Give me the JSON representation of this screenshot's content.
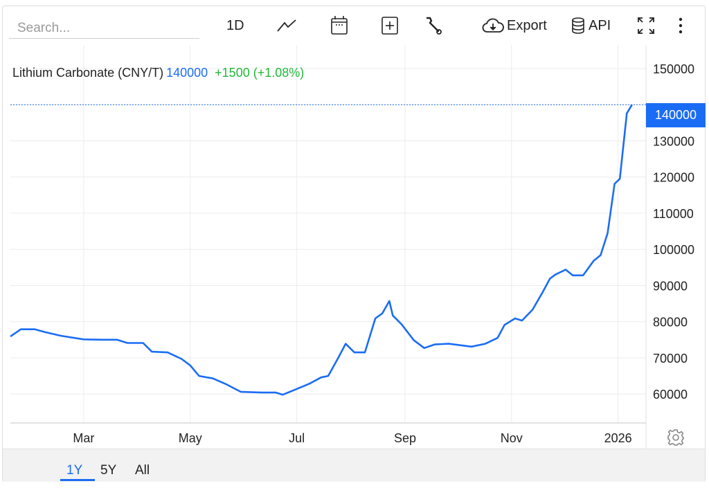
{
  "toolbar": {
    "search_placeholder": "Search...",
    "interval_label": "1D",
    "export_label": "Export",
    "api_label": "API",
    "icons": [
      "line-chart-icon",
      "calendar-icon",
      "plus-box-icon",
      "wrench-icon",
      "cloud-download-icon",
      "database-icon",
      "fullscreen-icon",
      "more-vertical-icon"
    ]
  },
  "legend": {
    "name": "Lithium Carbonate (CNY/T)",
    "value": "140000",
    "change": "+1500 (+1.08%)"
  },
  "ranges": [
    {
      "label": "1Y",
      "active": true
    },
    {
      "label": "5Y",
      "active": false
    },
    {
      "label": "All",
      "active": false
    }
  ],
  "colors": {
    "line": "#1a6cf5",
    "change": "#22b83a",
    "grid": "#ececec"
  },
  "chart_data": {
    "type": "line",
    "title": "Lithium Carbonate (CNY/T)",
    "current_value": 140000,
    "current_value_label": "140000",
    "xlim": [
      "2025-01-18",
      "2026-01-17"
    ],
    "ylim": [
      52000,
      156500
    ],
    "y_ticks": [
      60000,
      70000,
      80000,
      90000,
      100000,
      110000,
      120000,
      130000,
      140000,
      150000
    ],
    "y_tick_labels": [
      "60000",
      "70000",
      "80000",
      "90000",
      "100000",
      "110000",
      "120000",
      "130000",
      "140000",
      "150000"
    ],
    "x_ticks": [
      "2025-03-01",
      "2025-05-01",
      "2025-07-01",
      "2025-09-01",
      "2025-11-01",
      "2026-01-01"
    ],
    "x_tick_labels": [
      "Mar",
      "May",
      "Jul",
      "Sep",
      "Nov",
      "2026"
    ],
    "y_axis_side": "right",
    "grid": true,
    "series": [
      {
        "x": [
          "2025-01-18",
          "2025-01-24",
          "2025-02-01",
          "2025-02-07",
          "2025-02-16",
          "2025-03-01",
          "2025-03-12",
          "2025-03-20",
          "2025-03-26",
          "2025-04-04",
          "2025-04-09",
          "2025-04-18",
          "2025-04-26",
          "2025-05-01",
          "2025-05-06",
          "2025-05-14",
          "2025-05-22",
          "2025-05-30",
          "2025-06-11",
          "2025-06-19",
          "2025-06-23",
          "2025-07-01",
          "2025-07-08",
          "2025-07-15",
          "2025-07-19",
          "2025-07-25",
          "2025-07-29",
          "2025-08-03",
          "2025-08-09",
          "2025-08-15",
          "2025-08-19",
          "2025-08-23",
          "2025-08-25",
          "2025-08-30",
          "2025-09-06",
          "2025-09-12",
          "2025-09-18",
          "2025-09-26",
          "2025-10-09",
          "2025-10-17",
          "2025-10-24",
          "2025-10-28",
          "2025-11-03",
          "2025-11-07",
          "2025-11-13",
          "2025-11-19",
          "2025-11-23",
          "2025-11-26",
          "2025-12-02",
          "2025-12-06",
          "2025-12-12",
          "2025-12-18",
          "2025-12-22",
          "2025-12-26",
          "2025-12-30",
          "2026-01-02",
          "2026-01-06",
          "2026-01-09"
        ],
        "y": [
          75900,
          77900,
          77900,
          77100,
          76100,
          75100,
          75000,
          75000,
          74100,
          74100,
          71700,
          71500,
          69700,
          67900,
          65000,
          64300,
          62600,
          60600,
          60400,
          60400,
          59800,
          61400,
          62800,
          64600,
          65000,
          70200,
          73900,
          71500,
          71500,
          80900,
          82300,
          85700,
          81700,
          79300,
          74900,
          72700,
          73700,
          73900,
          73100,
          73900,
          75500,
          79100,
          80900,
          80300,
          83300,
          88300,
          91900,
          93000,
          94400,
          92800,
          92800,
          96800,
          98400,
          104400,
          118100,
          119500,
          137600,
          140000
        ]
      }
    ]
  }
}
